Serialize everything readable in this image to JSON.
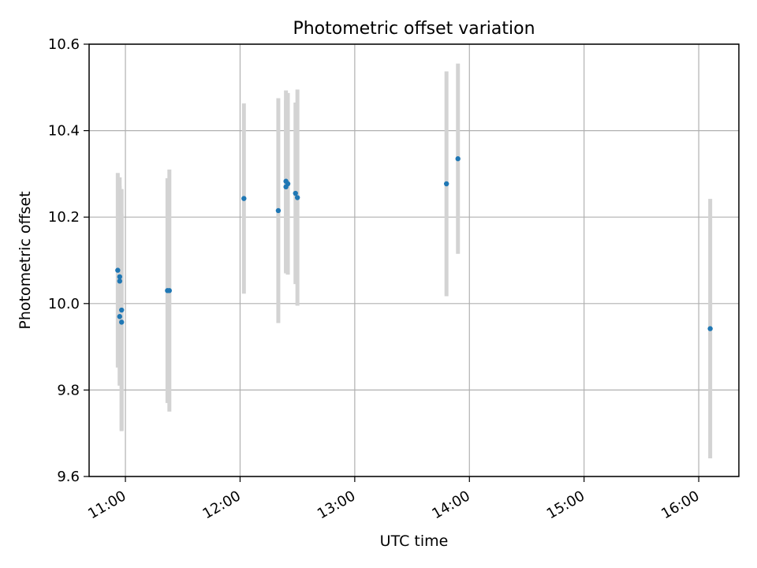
{
  "chart_data": {
    "type": "scatter",
    "title": "Photometric offset variation",
    "xlabel": "UTC time",
    "ylabel": "Photometric offset",
    "x_axis": {
      "kind": "time",
      "range": [
        "10:41",
        "16:21"
      ],
      "ticks": [
        "11:00",
        "12:00",
        "13:00",
        "14:00",
        "15:00",
        "16:00"
      ]
    },
    "y_axis": {
      "range": [
        9.6,
        10.6
      ],
      "ticks": [
        "9.6",
        "9.8",
        "10.0",
        "10.2",
        "10.4",
        "10.6"
      ]
    },
    "grid": true,
    "marker_color": "#1f77b4",
    "errorbar_color": "#d3d3d3",
    "series": [
      {
        "points": [
          {
            "x": "10:56",
            "y": 10.077,
            "err": 0.225
          },
          {
            "x": "10:57",
            "y": 10.062,
            "err": 0.21
          },
          {
            "x": "10:57",
            "y": 10.052,
            "err": 0.24
          },
          {
            "x": "10:57",
            "y": 9.97,
            "err": 0.16
          },
          {
            "x": "10:58",
            "y": 9.957,
            "err": 0.25
          },
          {
            "x": "10:58",
            "y": 9.985,
            "err": 0.28
          },
          {
            "x": "11:22",
            "y": 10.03,
            "err": 0.26
          },
          {
            "x": "11:23",
            "y": 10.03,
            "err": 0.28
          },
          {
            "x": "12:02",
            "y": 10.243,
            "err": 0.22
          },
          {
            "x": "12:20",
            "y": 10.215,
            "err": 0.26
          },
          {
            "x": "12:24",
            "y": 10.27,
            "err": 0.2
          },
          {
            "x": "12:24",
            "y": 10.283,
            "err": 0.21
          },
          {
            "x": "12:25",
            "y": 10.277,
            "err": 0.21
          },
          {
            "x": "12:29",
            "y": 10.255,
            "err": 0.21
          },
          {
            "x": "12:30",
            "y": 10.245,
            "err": 0.25
          },
          {
            "x": "13:48",
            "y": 10.277,
            "err": 0.26
          },
          {
            "x": "13:54",
            "y": 10.335,
            "err": 0.22
          },
          {
            "x": "16:06",
            "y": 9.942,
            "err": 0.3
          }
        ]
      }
    ]
  }
}
